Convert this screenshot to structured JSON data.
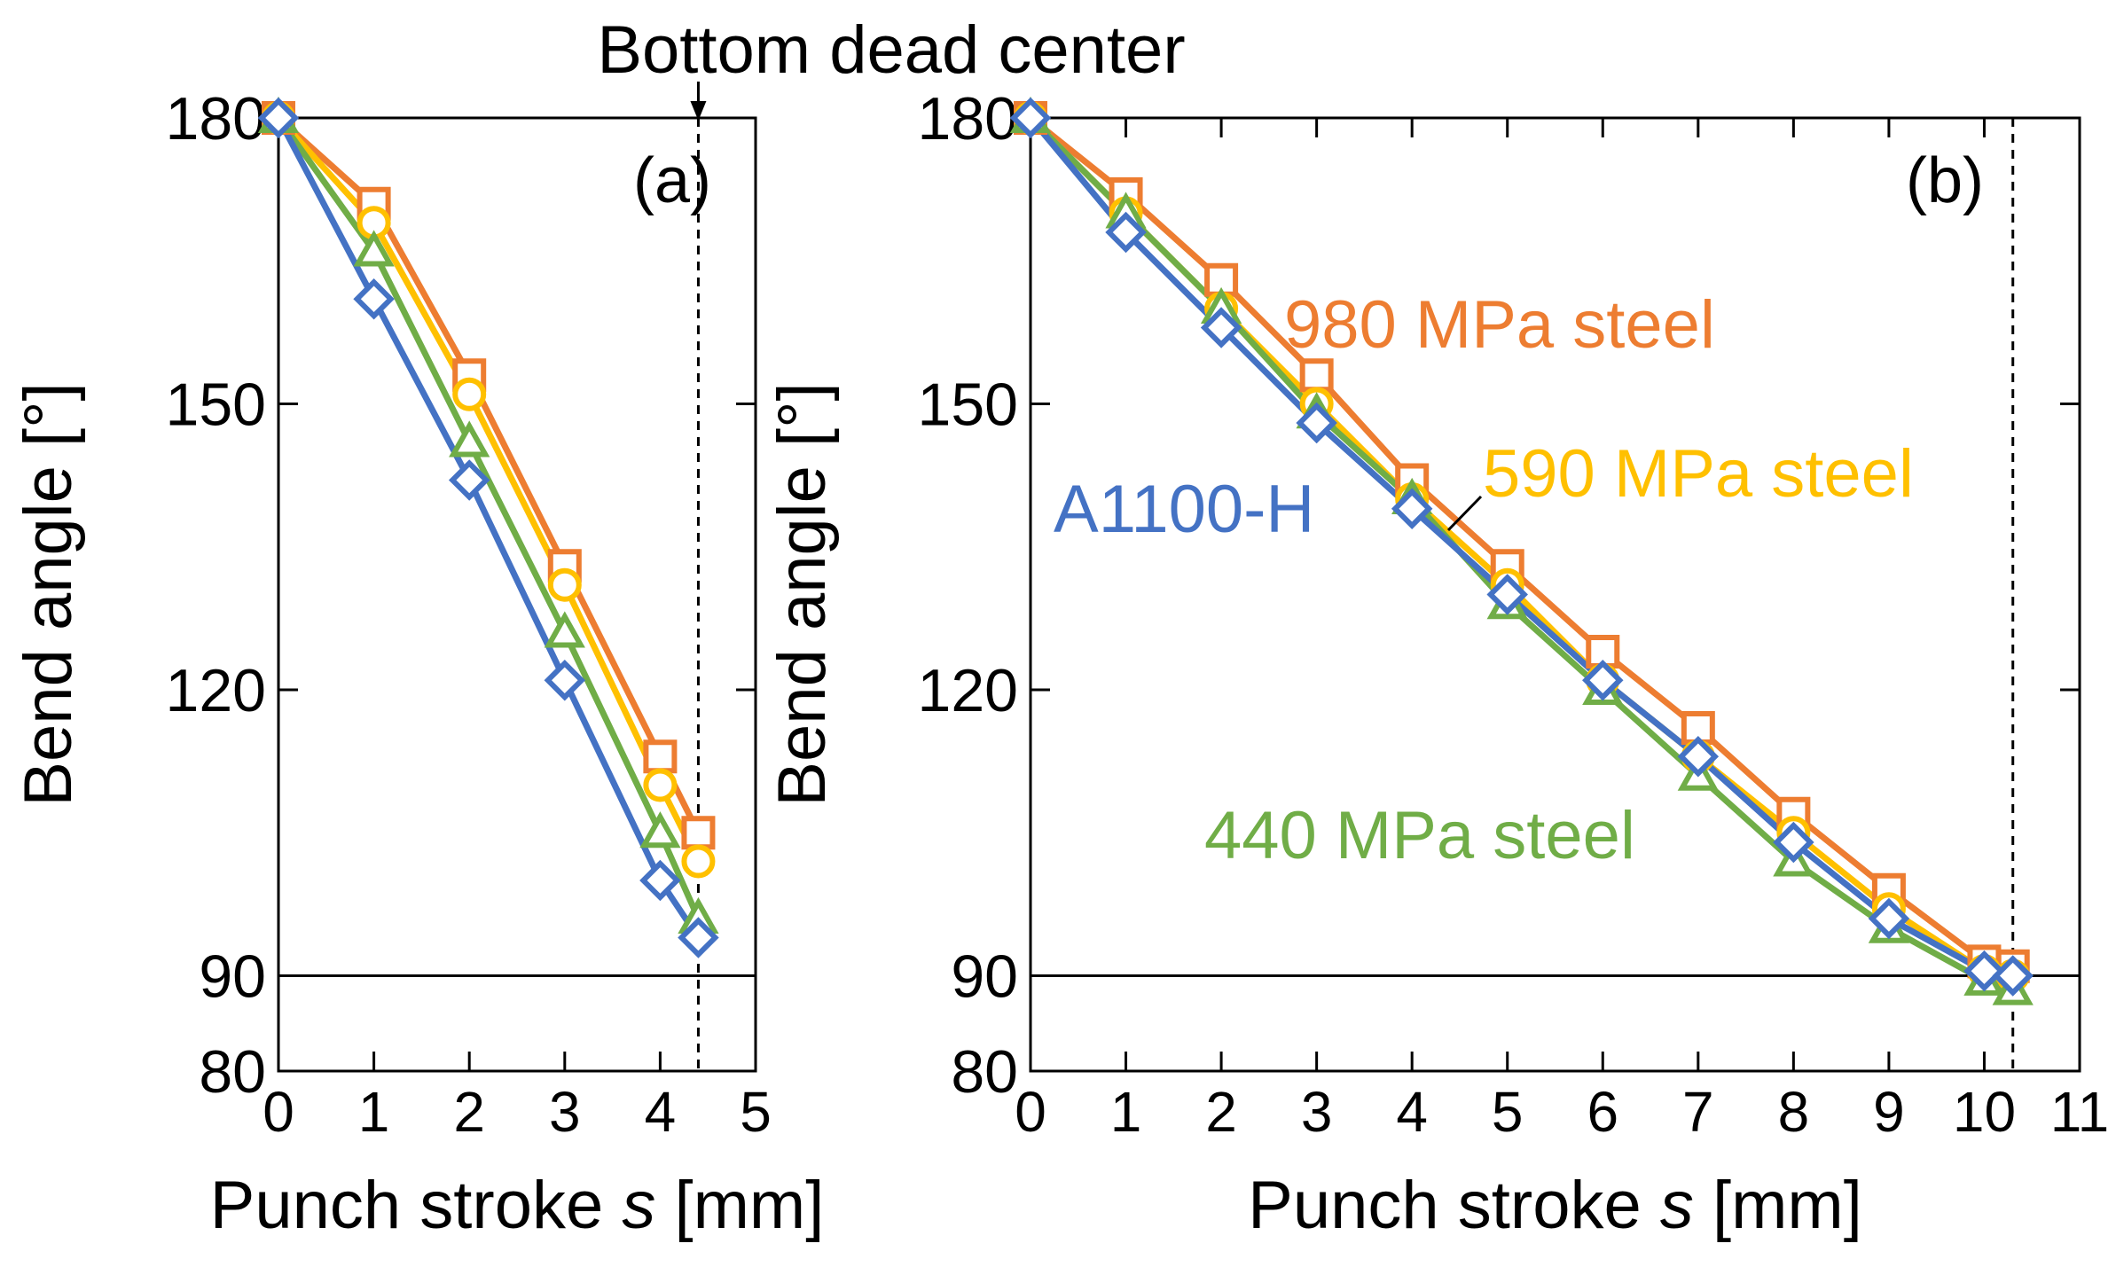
{
  "figure": {
    "top_annotation": "Bottom dead center"
  },
  "colors": {
    "980": "#ED7D31",
    "590": "#FFC000",
    "440": "#70AD47",
    "A1100": "#4472C4",
    "axis": "#000000"
  },
  "chart_data": [
    {
      "id": "a",
      "type": "line",
      "panel_label": "(a)",
      "xlabel_prefix": "Punch stroke ",
      "xlabel_var": "s",
      "xlabel_suffix": " [mm]",
      "ylabel": "Bend angle [°]",
      "xlim": [
        0,
        5
      ],
      "ylim": [
        80,
        180
      ],
      "xticks": [
        0,
        1,
        2,
        3,
        4,
        5
      ],
      "yticks": [
        80,
        90,
        120,
        150,
        180
      ],
      "reference_line_y": 90,
      "bottom_dead_center_x": 4.4,
      "series": [
        {
          "name": "980 MPa steel",
          "marker": "square",
          "color": "#ED7D31",
          "x": [
            0,
            1,
            2,
            3,
            4,
            4.4
          ],
          "y": [
            180,
            171,
            153,
            133,
            113,
            105
          ]
        },
        {
          "name": "590 MPa steel",
          "marker": "circle",
          "color": "#FFC000",
          "x": [
            0,
            1,
            2,
            3,
            4,
            4.4
          ],
          "y": [
            180,
            169,
            151,
            131,
            110,
            102
          ]
        },
        {
          "name": "440 MPa steel",
          "marker": "triangle",
          "color": "#70AD47",
          "x": [
            0,
            1,
            2,
            3,
            4,
            4.4
          ],
          "y": [
            180,
            166,
            146,
            126,
            105,
            96
          ]
        },
        {
          "name": "A1100-H",
          "marker": "diamond",
          "color": "#4472C4",
          "x": [
            0,
            1,
            2,
            3,
            4,
            4.4
          ],
          "y": [
            180,
            161,
            142,
            121,
            100,
            94
          ]
        }
      ]
    },
    {
      "id": "b",
      "type": "line",
      "panel_label": "(b)",
      "xlabel_prefix": "Punch stroke ",
      "xlabel_var": "s",
      "xlabel_suffix": " [mm]",
      "ylabel": "Bend angle [°]",
      "xlim": [
        0,
        11
      ],
      "ylim": [
        80,
        180
      ],
      "xticks": [
        0,
        1,
        2,
        3,
        4,
        5,
        6,
        7,
        8,
        9,
        10,
        11
      ],
      "yticks": [
        80,
        90,
        120,
        150,
        180
      ],
      "reference_line_y": 90,
      "bottom_dead_center_x": 10.3,
      "annotations": [
        {
          "text": "980 MPa steel",
          "series": "980 MPa steel",
          "color": "#ED7D31"
        },
        {
          "text": "590 MPa steel",
          "series": "590 MPa steel",
          "color": "#FFC000"
        },
        {
          "text": "A1100-H",
          "series": "A1100-H",
          "color": "#4472C4"
        },
        {
          "text": "440 MPa steel",
          "series": "440 MPa steel",
          "color": "#70AD47"
        }
      ],
      "series": [
        {
          "name": "980 MPa steel",
          "marker": "square",
          "color": "#ED7D31",
          "x": [
            0,
            1,
            2,
            3,
            4,
            5,
            6,
            7,
            8,
            9,
            10,
            10.3
          ],
          "y": [
            180,
            172,
            163,
            153,
            142,
            133,
            124,
            116,
            107,
            99,
            91.5,
            91
          ]
        },
        {
          "name": "590 MPa steel",
          "marker": "circle",
          "color": "#FFC000",
          "x": [
            0,
            1,
            2,
            3,
            4,
            5,
            6,
            7,
            8,
            9,
            10,
            10.3
          ],
          "y": [
            180,
            170,
            160,
            150,
            140,
            131,
            121,
            113,
            105,
            97,
            90.5,
            90
          ]
        },
        {
          "name": "440 MPa steel",
          "marker": "triangle",
          "color": "#70AD47",
          "x": [
            0,
            1,
            2,
            3,
            4,
            5,
            6,
            7,
            8,
            9,
            10,
            10.3
          ],
          "y": [
            180,
            170,
            160,
            149,
            140,
            129,
            120,
            111,
            102,
            95,
            89.5,
            88.5
          ]
        },
        {
          "name": "A1100-H",
          "marker": "diamond",
          "color": "#4472C4",
          "x": [
            0,
            1,
            2,
            3,
            4,
            5,
            6,
            7,
            8,
            9,
            10,
            10.3
          ],
          "y": [
            180,
            168,
            158,
            148,
            139,
            130,
            121,
            113,
            104,
            96,
            90.5,
            90
          ]
        }
      ]
    }
  ]
}
